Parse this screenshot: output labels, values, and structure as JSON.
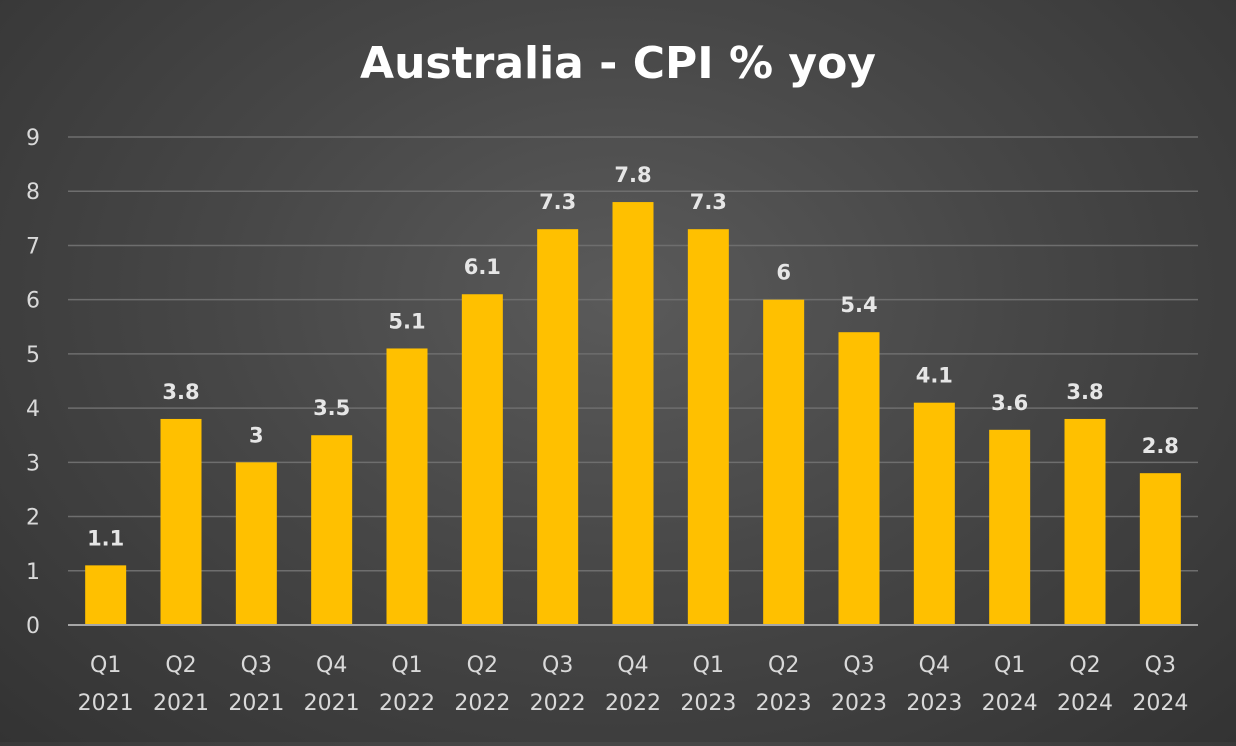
{
  "chart_data": {
    "type": "bar",
    "title": "Australia - CPI % yoy",
    "xlabel": "",
    "ylabel": "",
    "ylim": [
      0,
      9
    ],
    "yticks": [
      "0",
      "1",
      "2",
      "3",
      "4",
      "5",
      "6",
      "7",
      "8",
      "9"
    ],
    "grid": true,
    "legend": "none",
    "colors": {
      "bar": "#ffc000",
      "gridline": "#6e6e6e",
      "axis_line": "#a6a6a6",
      "tick_text": "#d9d9d9",
      "data_label": "#e6e6e6",
      "title": "#ffffff"
    },
    "categories": [
      [
        "Q1",
        "2021"
      ],
      [
        "Q2",
        "2021"
      ],
      [
        "Q3",
        "2021"
      ],
      [
        "Q4",
        "2021"
      ],
      [
        "Q1",
        "2022"
      ],
      [
        "Q2",
        "2022"
      ],
      [
        "Q3",
        "2022"
      ],
      [
        "Q4",
        "2022"
      ],
      [
        "Q1",
        "2023"
      ],
      [
        "Q2",
        "2023"
      ],
      [
        "Q3",
        "2023"
      ],
      [
        "Q4",
        "2023"
      ],
      [
        "Q1",
        "2024"
      ],
      [
        "Q2",
        "2024"
      ],
      [
        "Q3",
        "2024"
      ]
    ],
    "values": [
      1.1,
      3.8,
      3,
      3.5,
      5.1,
      6.1,
      7.3,
      7.8,
      7.3,
      6,
      5.4,
      4.1,
      3.6,
      3.8,
      2.8
    ],
    "data_labels": [
      "1.1",
      "3.8",
      "3",
      "3.5",
      "5.1",
      "6.1",
      "7.3",
      "7.8",
      "7.3",
      "6",
      "5.4",
      "4.1",
      "3.6",
      "3.8",
      "2.8"
    ]
  }
}
